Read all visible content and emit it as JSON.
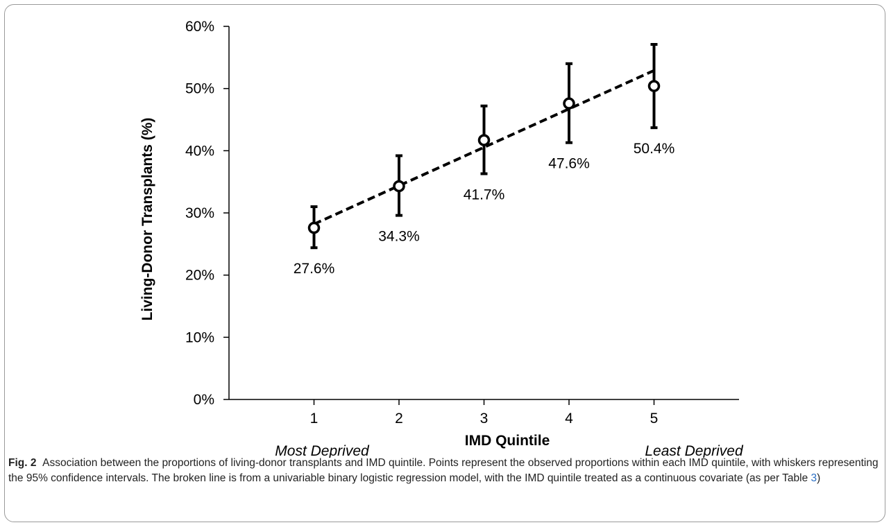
{
  "chart_data": {
    "type": "scatter",
    "x": [
      1,
      2,
      3,
      4,
      5
    ],
    "y": [
      27.6,
      34.3,
      41.7,
      47.6,
      50.4
    ],
    "ci_lower": [
      24.4,
      29.6,
      36.3,
      41.3,
      43.7
    ],
    "ci_upper": [
      31.0,
      39.2,
      47.2,
      54.0,
      57.1
    ],
    "point_labels": [
      "27.6%",
      "34.3%",
      "41.7%",
      "47.6%",
      "50.4%"
    ],
    "fit_line": {
      "style": "dashed",
      "x": [
        1,
        5
      ],
      "y": [
        28.2,
        52.9
      ]
    },
    "xlabel": "IMD Quintile",
    "ylabel": "Living-Donor Transplants (%)",
    "x_ticks": [
      "1",
      "2",
      "3",
      "4",
      "5"
    ],
    "y_ticks": [
      "0%",
      "10%",
      "20%",
      "30%",
      "40%",
      "50%",
      "60%"
    ],
    "ylim": [
      0,
      60
    ],
    "xlim": [
      0,
      6
    ],
    "grid": false,
    "annotations": {
      "left": "Most Deprived",
      "right": "Least Deprived"
    }
  },
  "caption": {
    "label": "Fig. 2",
    "text_before_ref": "Association between the proportions of living-donor transplants and IMD quintile. Points represent the observed proportions within each IMD quintile, with whiskers representing the 95% confidence intervals. The broken line is from a univariable binary logistic regression model, with the IMD quintile treated as a continuous covariate (as per Table ",
    "ref": "3",
    "text_after_ref": ")"
  }
}
